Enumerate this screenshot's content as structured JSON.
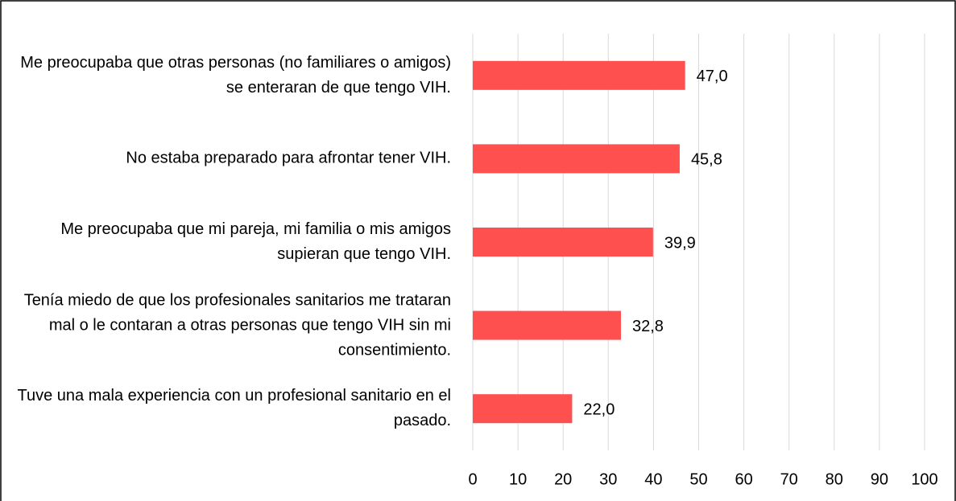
{
  "chart_data": {
    "type": "barh",
    "categories": [
      "Me preocupaba que otras personas (no familiares o amigos) se enteraran de que tengo VIH.",
      "No estaba preparado para afrontar tener VIH.",
      "Me preocupaba que mi pareja, mi familia o mis amigos supieran que tengo VIH.",
      "Tenía miedo de que los profesionales sanitarios me trataran mal o le contaran a otras personas que tengo VIH sin mi consentimiento.",
      "Tuve una mala experiencia con un profesional sanitario en el pasado."
    ],
    "values": [
      47.0,
      45.8,
      39.9,
      32.8,
      22.0
    ],
    "value_labels": [
      "47,0",
      "45,8",
      "39,9",
      "32,8",
      "22,0"
    ],
    "color": "#ff5050",
    "xlim": [
      0,
      100
    ],
    "xticks": [
      0,
      10,
      20,
      30,
      40,
      50,
      60,
      70,
      80,
      90,
      100
    ],
    "grid": true
  }
}
